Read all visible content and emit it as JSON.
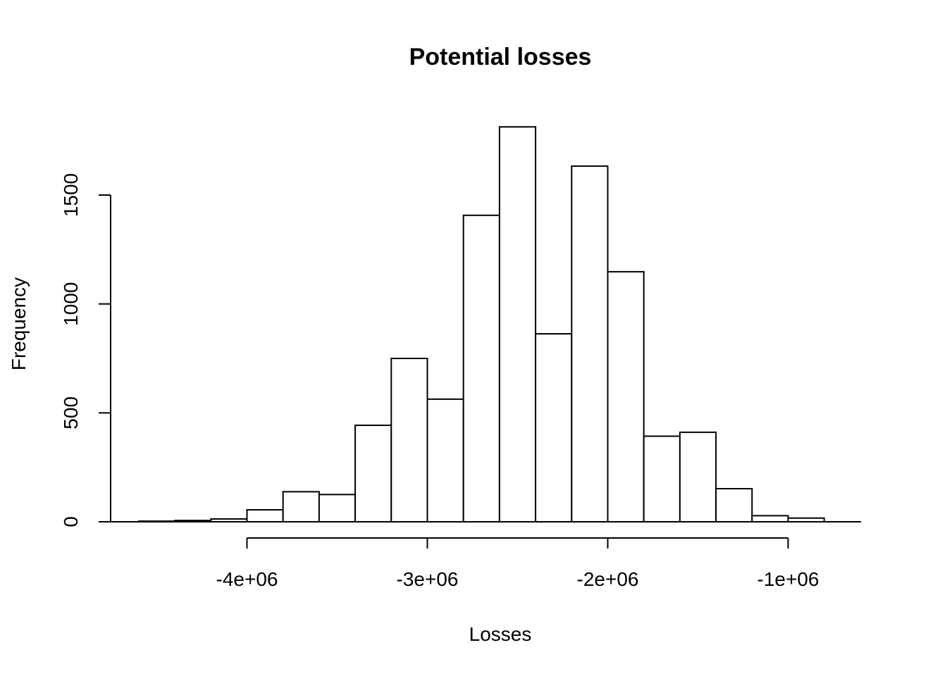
{
  "chart_data": {
    "type": "bar",
    "title": "Potential losses",
    "xlabel": "Losses",
    "ylabel": "Frequency",
    "bin_width": 200000,
    "bins_start": [
      -4600000,
      -4400000,
      -4200000,
      -4000000,
      -3800000,
      -3600000,
      -3400000,
      -3200000,
      -3000000,
      -2800000,
      -2600000,
      -2400000,
      -2200000,
      -2000000,
      -1800000,
      -1600000,
      -1400000,
      -1200000,
      -1000000
    ],
    "values": [
      3,
      6,
      13,
      55,
      138,
      125,
      443,
      750,
      563,
      1407,
      1813,
      863,
      1633,
      1148,
      393,
      411,
      152,
      28,
      17
    ],
    "x_ticks": [
      -4000000,
      -3000000,
      -2000000,
      -1000000
    ],
    "x_tick_labels": [
      "-4e+06",
      "-3e+06",
      "-2e+06",
      "-1e+06"
    ],
    "y_ticks": [
      0,
      500,
      1000,
      1500
    ],
    "y_tick_labels": [
      "0",
      "500",
      "1000",
      "1500"
    ],
    "xlim": [
      -4600000,
      -800000
    ],
    "ylim": [
      0,
      1813
    ],
    "grid": false,
    "colors": {
      "bar_fill": "#ffffff",
      "bar_stroke": "#000000"
    }
  }
}
